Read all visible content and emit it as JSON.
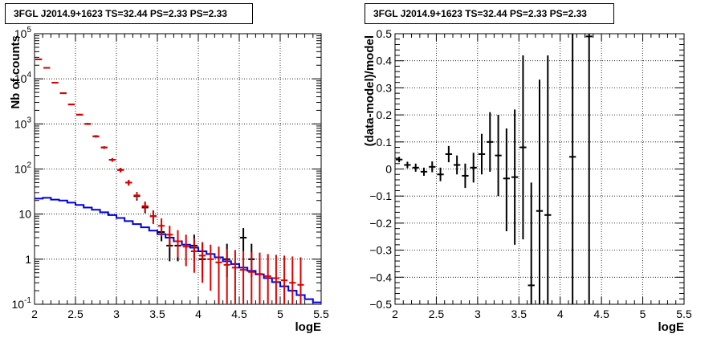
{
  "chart_data": [
    {
      "type": "scatter",
      "title": "3FGL J2014.9+1623 TS=32.44 PS=2.33 PS=2.33",
      "xlabel": "logE",
      "ylabel": "Nb of counts",
      "xlim": [
        2,
        5.5
      ],
      "ylim": [
        0.1,
        100000
      ],
      "yscale": "log",
      "grid": true,
      "x_ticks": [
        "2",
        "2.5",
        "3",
        "3.5",
        "4",
        "4.5",
        "5",
        "5.5"
      ],
      "y_ticks": [
        {
          "value": 0.1,
          "base": "10",
          "exp": "-1"
        },
        {
          "value": 1,
          "base": "1",
          "exp": ""
        },
        {
          "value": 10,
          "base": "10",
          "exp": ""
        },
        {
          "value": 100,
          "base": "10",
          "exp": "2"
        },
        {
          "value": 1000,
          "base": "10",
          "exp": "3"
        },
        {
          "value": 10000,
          "base": "10",
          "exp": "4"
        },
        {
          "value": 100000,
          "base": "10",
          "exp": "5"
        }
      ],
      "bin_width": 0.1,
      "series": [
        {
          "role": "data",
          "color": "#000000",
          "points": [
            {
              "x": 2.05,
              "y": 27000,
              "lo": 26700,
              "hi": 27300
            },
            {
              "x": 2.15,
              "y": 17500,
              "lo": 17300,
              "hi": 17700
            },
            {
              "x": 2.25,
              "y": 8200,
              "lo": 8050,
              "hi": 8350
            },
            {
              "x": 2.35,
              "y": 4800,
              "lo": 4700,
              "hi": 4900
            },
            {
              "x": 2.45,
              "y": 2700,
              "lo": 2620,
              "hi": 2780
            },
            {
              "x": 2.55,
              "y": 1600,
              "lo": 1550,
              "hi": 1650
            },
            {
              "x": 2.65,
              "y": 1000,
              "lo": 960,
              "hi": 1040
            },
            {
              "x": 2.75,
              "y": 530,
              "lo": 505,
              "hi": 555
            },
            {
              "x": 2.85,
              "y": 300,
              "lo": 283,
              "hi": 317
            },
            {
              "x": 2.95,
              "y": 160,
              "lo": 148,
              "hi": 172
            },
            {
              "x": 3.05,
              "y": 95,
              "lo": 86,
              "hi": 105
            },
            {
              "x": 3.15,
              "y": 50,
              "lo": 43,
              "hi": 57
            },
            {
              "x": 3.25,
              "y": 25,
              "lo": 20,
              "hi": 30
            },
            {
              "x": 3.35,
              "y": 14,
              "lo": 10.5,
              "hi": 18
            },
            {
              "x": 3.45,
              "y": 9,
              "lo": 6.5,
              "hi": 12
            },
            {
              "x": 3.55,
              "y": 4,
              "lo": 2.5,
              "hi": 6
            },
            {
              "x": 3.65,
              "y": 2,
              "lo": 0.9,
              "hi": 3.5
            },
            {
              "x": 3.75,
              "y": 2,
              "lo": 0.9,
              "hi": 3.5
            },
            {
              "x": 3.95,
              "y": 2,
              "lo": 0.9,
              "hi": 3.5
            },
            {
              "x": 4.05,
              "y": 1,
              "lo": 0.4,
              "hi": 2.2
            },
            {
              "x": 4.35,
              "y": 1,
              "lo": 0.4,
              "hi": 2.2
            },
            {
              "x": 4.55,
              "y": 3,
              "lo": 1.5,
              "hi": 4.9
            },
            {
              "x": 4.65,
              "y": 1,
              "lo": 0.4,
              "hi": 2.2
            }
          ]
        },
        {
          "role": "model-error",
          "color": "#dd0000",
          "points": [
            {
              "x": 2.05,
              "y": 27000,
              "lo": 26200,
              "hi": 27800
            },
            {
              "x": 2.15,
              "y": 17500,
              "lo": 17000,
              "hi": 18000
            },
            {
              "x": 2.25,
              "y": 8200,
              "lo": 7950,
              "hi": 8450
            },
            {
              "x": 2.35,
              "y": 4800,
              "lo": 4650,
              "hi": 4950
            },
            {
              "x": 2.45,
              "y": 2700,
              "lo": 2600,
              "hi": 2800
            },
            {
              "x": 2.55,
              "y": 1600,
              "lo": 1530,
              "hi": 1670
            },
            {
              "x": 2.65,
              "y": 1000,
              "lo": 950,
              "hi": 1050
            },
            {
              "x": 2.75,
              "y": 530,
              "lo": 495,
              "hi": 565
            },
            {
              "x": 2.85,
              "y": 300,
              "lo": 280,
              "hi": 320
            },
            {
              "x": 2.95,
              "y": 160,
              "lo": 145,
              "hi": 175
            },
            {
              "x": 3.05,
              "y": 95,
              "lo": 84,
              "hi": 106
            },
            {
              "x": 3.15,
              "y": 50,
              "lo": 43,
              "hi": 57
            },
            {
              "x": 3.25,
              "y": 26,
              "lo": 21,
              "hi": 31
            },
            {
              "x": 3.35,
              "y": 15,
              "lo": 11,
              "hi": 19
            },
            {
              "x": 3.45,
              "y": 9,
              "lo": 6,
              "hi": 12
            },
            {
              "x": 3.55,
              "y": 5.5,
              "lo": 3.2,
              "hi": 8
            },
            {
              "x": 3.65,
              "y": 3.5,
              "lo": 1.8,
              "hi": 5.5
            },
            {
              "x": 3.75,
              "y": 2.5,
              "lo": 1.1,
              "hi": 4.4
            },
            {
              "x": 3.85,
              "y": 1.9,
              "lo": 0.7,
              "hi": 3.5
            },
            {
              "x": 3.95,
              "y": 1.5,
              "lo": 0.5,
              "hi": 2.9
            },
            {
              "x": 4.05,
              "y": 1.2,
              "lo": 0.3,
              "hi": 2.4
            },
            {
              "x": 4.15,
              "y": 1.0,
              "lo": 0.2,
              "hi": 2.1
            },
            {
              "x": 4.25,
              "y": 0.85,
              "lo": 0.1,
              "hi": 1.9
            },
            {
              "x": 4.35,
              "y": 0.75,
              "lo": 0.1,
              "hi": 1.7
            },
            {
              "x": 4.45,
              "y": 0.65,
              "lo": 0.1,
              "hi": 1.6
            },
            {
              "x": 4.55,
              "y": 0.58,
              "lo": 0.1,
              "hi": 1.5
            },
            {
              "x": 4.65,
              "y": 0.52,
              "lo": 0.1,
              "hi": 1.45
            },
            {
              "x": 4.75,
              "y": 0.47,
              "lo": 0.1,
              "hi": 1.4
            },
            {
              "x": 4.85,
              "y": 0.42,
              "lo": 0.1,
              "hi": 1.3
            },
            {
              "x": 4.95,
              "y": 0.38,
              "lo": 0.1,
              "hi": 1.25
            },
            {
              "x": 5.05,
              "y": 0.34,
              "lo": 0.1,
              "hi": 1.2
            },
            {
              "x": 5.15,
              "y": 0.3,
              "lo": 0.1,
              "hi": 1.15
            },
            {
              "x": 5.25,
              "y": 0.27,
              "lo": 0.1,
              "hi": 1.1
            }
          ]
        },
        {
          "role": "background-model",
          "color": "#0000dd",
          "step_values": [
            22,
            23,
            21,
            20,
            18,
            16,
            14,
            12.5,
            11,
            9.5,
            8.2,
            7,
            6,
            5.1,
            4.3,
            3.6,
            3.0,
            2.5,
            2.1,
            1.8,
            1.5,
            1.3,
            1.1,
            0.9,
            0.78,
            0.65,
            0.55,
            0.46,
            0.38,
            0.31,
            0.25,
            0.2,
            0.16,
            0.13,
            0.11
          ]
        }
      ]
    },
    {
      "type": "scatter",
      "title": "3FGL J2014.9+1623 TS=32.44 PS=2.33 PS=2.33",
      "xlabel": "logE",
      "ylabel": "(data-model)/model",
      "xlim": [
        2,
        5.5
      ],
      "ylim": [
        -0.5,
        0.5
      ],
      "grid": true,
      "x_ticks": [
        "2",
        "2.5",
        "3",
        "3.5",
        "4",
        "4.5",
        "5",
        "5.5"
      ],
      "y_ticks": [
        "−0.5",
        "−0.4",
        "−0.3",
        "−0.2",
        "−0.1",
        "0",
        "0.1",
        "0.2",
        "0.3",
        "0.4",
        "0.5"
      ],
      "y_tick_values": [
        -0.5,
        -0.4,
        -0.3,
        -0.2,
        -0.1,
        0,
        0.1,
        0.2,
        0.3,
        0.4,
        0.5
      ],
      "bin_width": 0.1,
      "series": [
        {
          "role": "residuals",
          "color": "#000000",
          "points": [
            {
              "x": 2.05,
              "y": 0.035,
              "lo": 0.025,
              "hi": 0.045
            },
            {
              "x": 2.15,
              "y": 0.015,
              "lo": 0.003,
              "hi": 0.027
            },
            {
              "x": 2.25,
              "y": 0.005,
              "lo": -0.01,
              "hi": 0.02
            },
            {
              "x": 2.35,
              "y": -0.01,
              "lo": -0.025,
              "hi": 0.005
            },
            {
              "x": 2.45,
              "y": 0.008,
              "lo": -0.012,
              "hi": 0.028
            },
            {
              "x": 2.55,
              "y": -0.02,
              "lo": -0.045,
              "hi": 0.005
            },
            {
              "x": 2.65,
              "y": 0.055,
              "lo": 0.025,
              "hi": 0.085
            },
            {
              "x": 2.75,
              "y": 0.015,
              "lo": -0.02,
              "hi": 0.05
            },
            {
              "x": 2.85,
              "y": -0.025,
              "lo": -0.07,
              "hi": 0.02
            },
            {
              "x": 2.95,
              "y": 0.005,
              "lo": -0.05,
              "hi": 0.06
            },
            {
              "x": 3.05,
              "y": 0.055,
              "lo": -0.02,
              "hi": 0.13
            },
            {
              "x": 3.15,
              "y": 0.1,
              "lo": -0.01,
              "hi": 0.21
            },
            {
              "x": 3.25,
              "y": 0.05,
              "lo": -0.1,
              "hi": 0.2
            },
            {
              "x": 3.35,
              "y": -0.035,
              "lo": -0.23,
              "hi": 0.15
            },
            {
              "x": 3.45,
              "y": -0.03,
              "lo": -0.28,
              "hi": 0.22
            },
            {
              "x": 3.55,
              "y": 0.08,
              "lo": -0.26,
              "hi": 0.42
            },
            {
              "x": 3.65,
              "y": -0.43,
              "lo": -0.5,
              "hi": -0.05
            },
            {
              "x": 3.75,
              "y": -0.155,
              "lo": -0.5,
              "hi": 0.33
            },
            {
              "x": 3.85,
              "y": -0.17,
              "lo": -0.5,
              "hi": 0.42
            },
            {
              "x": 4.15,
              "y": 0.045,
              "lo": -0.5,
              "hi": 0.5
            },
            {
              "x": 4.35,
              "y": 0.49,
              "lo": -0.5,
              "hi": 0.5
            }
          ]
        }
      ]
    }
  ]
}
